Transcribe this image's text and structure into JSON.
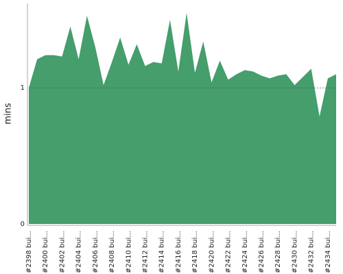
{
  "chart_data": {
    "type": "area",
    "y_label": "mins",
    "categories": [
      "#2398 bui...",
      null,
      "#2400 bui...",
      null,
      "#2402 bui...",
      null,
      "#2404 bui...",
      null,
      "#2406 bui...",
      null,
      "#2408 bui...",
      null,
      "#2410 bui...",
      null,
      "#2412 bui...",
      null,
      "#2414 bui...",
      null,
      "#2416 bui...",
      null,
      "#2418 bui...",
      null,
      "#2420 bui...",
      null,
      "#2422 bui...",
      null,
      "#2424 bui...",
      null,
      "#2426 bui...",
      null,
      "#2428 bui...",
      null,
      "#2430 bui...",
      null,
      "#2432 bui...",
      null,
      "#2434 bui...",
      null
    ],
    "values": [
      1.0,
      1.21,
      1.24,
      1.24,
      1.23,
      1.45,
      1.21,
      1.53,
      1.3,
      1.02,
      1.19,
      1.37,
      1.17,
      1.32,
      1.16,
      1.19,
      1.18,
      1.5,
      1.12,
      1.55,
      1.11,
      1.34,
      1.04,
      1.2,
      1.06,
      1.1,
      1.13,
      1.12,
      1.09,
      1.07,
      1.09,
      1.1,
      1.02,
      1.08,
      1.14,
      0.79,
      1.07,
      1.1
    ],
    "color": "#459e6c",
    "ylim": [
      0,
      1.62
    ],
    "yticks": [
      0,
      1
    ],
    "grid": true
  }
}
